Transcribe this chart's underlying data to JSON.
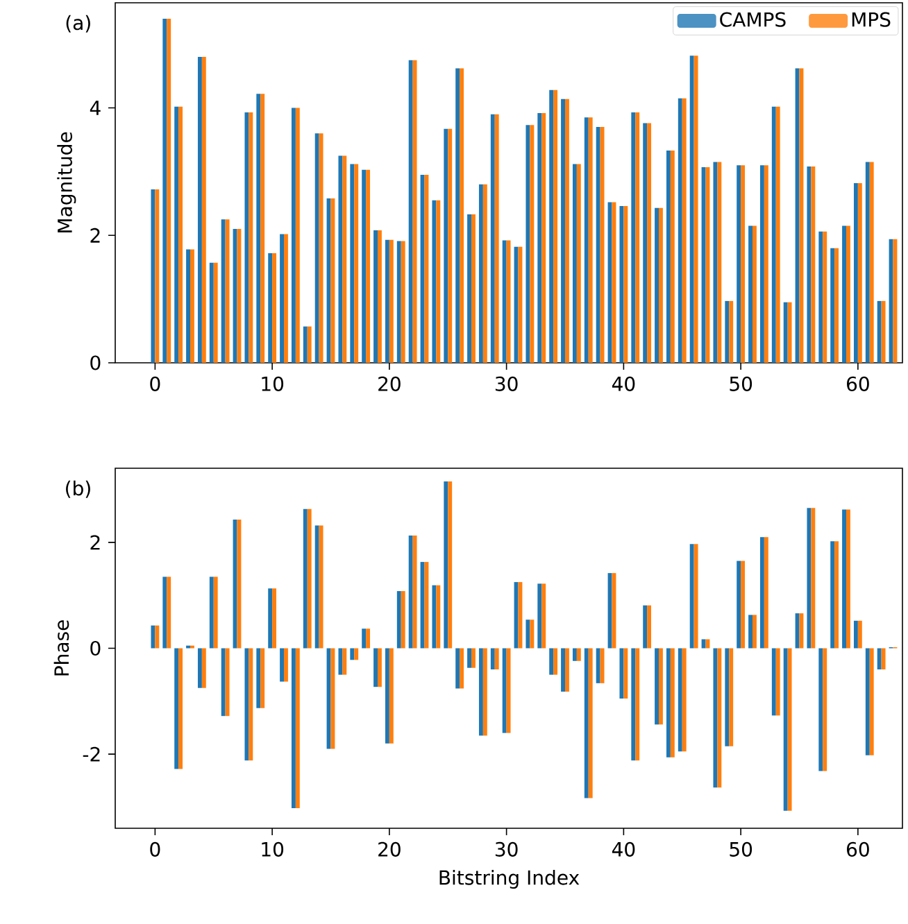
{
  "chart_data": [
    {
      "type": "bar",
      "annotations": [
        "(a)"
      ],
      "ylabel": "Magnitude",
      "x": [
        0,
        1,
        2,
        3,
        4,
        5,
        6,
        7,
        8,
        9,
        10,
        11,
        12,
        13,
        14,
        15,
        16,
        17,
        18,
        19,
        20,
        21,
        22,
        23,
        24,
        25,
        26,
        27,
        28,
        29,
        30,
        31,
        32,
        33,
        34,
        35,
        36,
        37,
        38,
        39,
        40,
        41,
        42,
        43,
        44,
        45,
        46,
        47,
        48,
        49,
        50,
        51,
        52,
        53,
        54,
        55,
        56,
        57,
        58,
        59,
        60,
        61,
        62,
        63
      ],
      "xlim": [
        -3.4,
        63.8
      ],
      "xticks": [
        0,
        10,
        20,
        30,
        40,
        50,
        60
      ],
      "ylim": [
        0,
        5.65
      ],
      "yticks": [
        0,
        2,
        4
      ],
      "legend": "top right",
      "grid": false,
      "series": [
        {
          "name": "CAMPS",
          "color": "#1f77b4",
          "values": [
            2.72,
            5.4,
            4.02,
            1.78,
            4.8,
            1.57,
            2.25,
            2.1,
            3.93,
            4.22,
            1.72,
            2.02,
            4.0,
            0.57,
            3.6,
            2.58,
            3.25,
            3.12,
            3.03,
            2.08,
            1.93,
            1.91,
            4.75,
            2.95,
            2.55,
            3.67,
            4.62,
            2.33,
            2.8,
            3.9,
            1.92,
            1.82,
            3.73,
            3.92,
            4.28,
            4.14,
            3.12,
            3.85,
            3.7,
            2.52,
            2.46,
            3.93,
            3.76,
            2.43,
            3.33,
            4.15,
            4.82,
            3.07,
            3.15,
            0.97,
            3.1,
            2.15,
            3.1,
            4.02,
            0.95,
            4.62,
            3.08,
            2.06,
            1.8,
            2.15,
            2.82,
            3.15,
            0.97,
            1.94
          ]
        },
        {
          "name": "MPS",
          "color": "#ff7f0e",
          "values": [
            2.72,
            5.4,
            4.02,
            1.78,
            4.8,
            1.57,
            2.25,
            2.1,
            3.93,
            4.22,
            1.72,
            2.02,
            4.0,
            0.57,
            3.6,
            2.58,
            3.25,
            3.12,
            3.03,
            2.08,
            1.93,
            1.91,
            4.75,
            2.95,
            2.55,
            3.67,
            4.62,
            2.33,
            2.8,
            3.9,
            1.92,
            1.82,
            3.73,
            3.92,
            4.28,
            4.14,
            3.12,
            3.85,
            3.7,
            2.52,
            2.46,
            3.93,
            3.76,
            2.43,
            3.33,
            4.15,
            4.82,
            3.07,
            3.15,
            0.97,
            3.1,
            2.15,
            3.1,
            4.02,
            0.95,
            4.62,
            3.08,
            2.06,
            1.8,
            2.15,
            2.82,
            3.15,
            0.97,
            1.94
          ]
        }
      ]
    },
    {
      "type": "bar",
      "annotations": [
        "(b)"
      ],
      "ylabel": "Phase",
      "xlabel": "Bitstring Index",
      "x": [
        0,
        1,
        2,
        3,
        4,
        5,
        6,
        7,
        8,
        9,
        10,
        11,
        12,
        13,
        14,
        15,
        16,
        17,
        18,
        19,
        20,
        21,
        22,
        23,
        24,
        25,
        26,
        27,
        28,
        29,
        30,
        31,
        32,
        33,
        34,
        35,
        36,
        37,
        38,
        39,
        40,
        41,
        42,
        43,
        44,
        45,
        46,
        47,
        48,
        49,
        50,
        51,
        52,
        53,
        54,
        55,
        56,
        57,
        58,
        59,
        60,
        61,
        62,
        63
      ],
      "xlim": [
        -3.4,
        63.8
      ],
      "xticks": [
        0,
        10,
        20,
        30,
        40,
        50,
        60
      ],
      "ylim": [
        -3.4,
        3.4
      ],
      "yticks": [
        -2,
        0,
        2
      ],
      "grid": false,
      "series": [
        {
          "color": "#1f77b4",
          "values": [
            0.43,
            1.35,
            -2.28,
            0.05,
            -0.75,
            1.35,
            -1.28,
            2.43,
            -2.12,
            -1.13,
            1.13,
            -0.63,
            -3.02,
            2.63,
            2.32,
            -1.9,
            -0.5,
            -0.22,
            0.37,
            -0.73,
            -1.8,
            1.08,
            2.13,
            1.63,
            1.19,
            3.15,
            -0.76,
            -0.37,
            -1.65,
            -0.4,
            -1.6,
            1.25,
            0.54,
            1.22,
            -0.5,
            -0.82,
            -0.24,
            -2.83,
            -0.66,
            1.42,
            -0.95,
            -2.12,
            0.81,
            -1.44,
            -2.06,
            -1.95,
            1.97,
            0.17,
            -2.63,
            -1.85,
            1.65,
            0.63,
            2.1,
            -1.27,
            -3.07,
            0.66,
            2.65,
            -2.32,
            2.02,
            2.62,
            0.52,
            -2.02,
            -0.4,
            0.02
          ]
        },
        {
          "color": "#ff7f0e",
          "values": [
            0.43,
            1.35,
            -2.28,
            0.05,
            -0.75,
            1.35,
            -1.28,
            2.43,
            -2.12,
            -1.13,
            1.13,
            -0.63,
            -3.02,
            2.63,
            2.32,
            -1.9,
            -0.5,
            -0.22,
            0.37,
            -0.73,
            -1.8,
            1.08,
            2.13,
            1.63,
            1.19,
            3.15,
            -0.76,
            -0.37,
            -1.65,
            -0.4,
            -1.6,
            1.25,
            0.54,
            1.22,
            -0.5,
            -0.82,
            -0.24,
            -2.83,
            -0.66,
            1.42,
            -0.95,
            -2.12,
            0.81,
            -1.44,
            -2.06,
            -1.95,
            1.97,
            0.17,
            -2.63,
            -1.85,
            1.65,
            0.63,
            2.1,
            -1.27,
            -3.07,
            0.66,
            2.65,
            -2.32,
            2.02,
            2.62,
            0.52,
            -2.02,
            -0.4,
            0.02
          ]
        }
      ]
    }
  ]
}
